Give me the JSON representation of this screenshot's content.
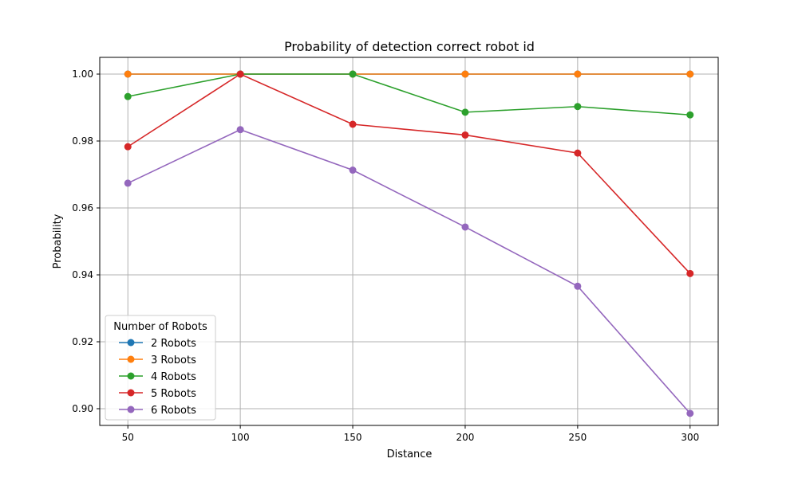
{
  "chart_data": {
    "type": "line",
    "title": "Probability of detection correct robot id",
    "xlabel": "Distance",
    "ylabel": "Probability",
    "x": [
      50,
      100,
      150,
      200,
      250,
      300
    ],
    "xticks": [
      50,
      100,
      150,
      200,
      250,
      300
    ],
    "yticks": [
      0.9,
      0.92,
      0.94,
      0.96,
      0.98,
      1.0
    ],
    "ytick_labels": [
      "0.90",
      "0.92",
      "0.94",
      "0.96",
      "0.98",
      "1.00"
    ],
    "xlim": [
      37.5,
      312.5
    ],
    "ylim": [
      0.895,
      1.005
    ],
    "grid": true,
    "legend": {
      "title": "Number of Robots",
      "placement": "lower-left"
    },
    "series": [
      {
        "name": "2 Robots",
        "color": "#1f77b4",
        "values": [
          1.0,
          1.0,
          1.0,
          1.0,
          1.0,
          1.0
        ]
      },
      {
        "name": "3 Robots",
        "color": "#ff7f0e",
        "values": [
          1.0,
          1.0,
          1.0,
          1.0,
          1.0,
          1.0
        ]
      },
      {
        "name": "4 Robots",
        "color": "#2ca02c",
        "values": [
          0.9933,
          1.0,
          1.0,
          0.9886,
          0.9903,
          0.9878
        ]
      },
      {
        "name": "5 Robots",
        "color": "#d62728",
        "values": [
          0.9783,
          1.0,
          0.985,
          0.9818,
          0.9764,
          0.9404
        ]
      },
      {
        "name": "6 Robots",
        "color": "#9467bd",
        "values": [
          0.9674,
          0.9834,
          0.9713,
          0.9543,
          0.9366,
          0.8986
        ]
      }
    ]
  }
}
